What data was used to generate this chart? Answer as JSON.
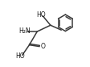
{
  "bg_color": "#ffffff",
  "line_color": "#3a3a3a",
  "text_color": "#1a1a1a",
  "figsize": [
    1.12,
    0.83
  ],
  "dpi": 100,
  "lw": 1.1,
  "xlim": [
    0,
    11
  ],
  "ylim": [
    0,
    8.5
  ]
}
